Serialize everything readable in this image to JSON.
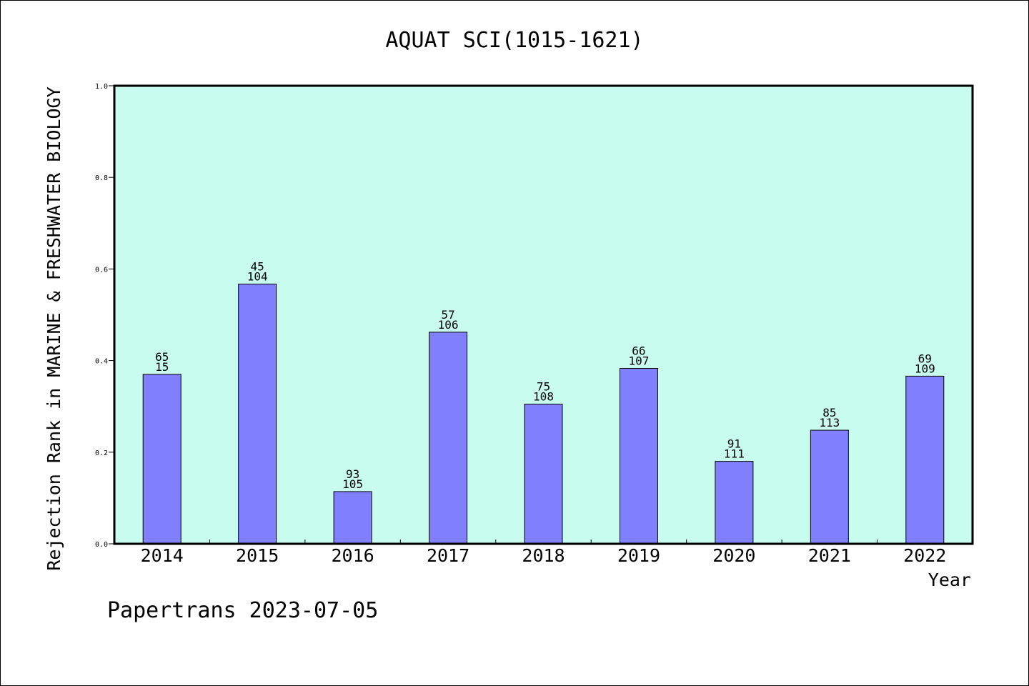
{
  "chart_data": {
    "type": "bar",
    "title": "AQUAT SCI(1015-1621)",
    "xlabel": "Year",
    "ylabel": "Rejection Rank in MARINE & FRESHWATER BIOLOGY",
    "ylim": [
      0,
      1.0
    ],
    "yticks": [
      "0.0",
      "0.2",
      "0.4",
      "0.6",
      "0.8",
      "1.0"
    ],
    "categories": [
      "2014",
      "2015",
      "2016",
      "2017",
      "2018",
      "2019",
      "2020",
      "2021",
      "2022"
    ],
    "values": [
      0.37,
      0.567,
      0.114,
      0.462,
      0.305,
      0.383,
      0.18,
      0.248,
      0.366
    ],
    "labels_top": [
      "65",
      "45",
      "93",
      "57",
      "75",
      "66",
      "91",
      "85",
      "69"
    ],
    "labels_bottom": [
      "15",
      "104",
      "105",
      "106",
      "108",
      "107",
      "111",
      "113",
      "109"
    ],
    "grid": false,
    "colors": {
      "plot_background": "#c8fcee",
      "bar_fill": "#8080ff",
      "bar_stroke": "#000000"
    }
  },
  "footer": {
    "watermark": "Papertrans 2023-07-05"
  }
}
